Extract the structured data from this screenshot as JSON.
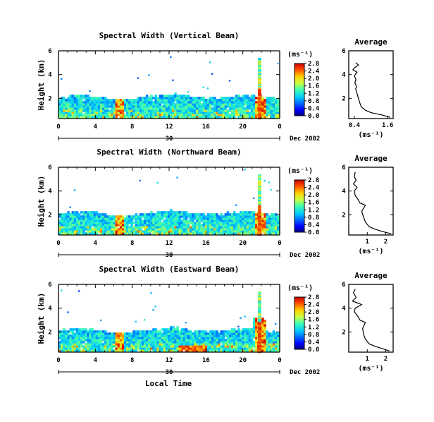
{
  "chart_data": [
    {
      "type": "heatmap",
      "title": "Spectral Width (Vertical Beam)",
      "ylabel": "Height (km)",
      "x_ticks": [
        "0",
        "4",
        "8",
        "12",
        "16",
        "20",
        "0"
      ],
      "y_ticks": [
        "2",
        "4",
        "6"
      ],
      "date_ticks": [
        "30"
      ],
      "date_label": "Dec 2002",
      "colorbar_unit": "(ms⁻¹)",
      "colorbar_ticks": [
        "0.0",
        "0.4",
        "0.8",
        "1.2",
        "1.6",
        "2.0",
        "2.4",
        "2.8"
      ],
      "xlim": [
        0,
        24
      ],
      "ylim": [
        0.3,
        6
      ],
      "avg": {
        "title": "Average",
        "xlabel": "(ms⁻¹)",
        "x_ticks": [
          "0.4",
          "1.6"
        ],
        "y_ticks": [
          "2",
          "4",
          "6"
        ],
        "xlim": [
          0.2,
          1.8
        ],
        "ylim": [
          0.3,
          6
        ],
        "profile": [
          [
            1.7,
            0.4
          ],
          [
            1.4,
            0.6
          ],
          [
            1.0,
            0.8
          ],
          [
            0.8,
            1.0
          ],
          [
            0.65,
            1.3
          ],
          [
            0.6,
            1.6
          ],
          [
            0.55,
            2.0
          ],
          [
            0.5,
            2.4
          ],
          [
            0.45,
            2.8
          ],
          [
            0.48,
            3.0
          ],
          [
            0.42,
            3.3
          ],
          [
            0.46,
            3.6
          ],
          [
            0.4,
            3.9
          ],
          [
            0.5,
            4.2
          ],
          [
            0.35,
            4.4
          ],
          [
            0.42,
            4.6
          ],
          [
            0.55,
            4.8
          ],
          [
            0.45,
            5.0
          ]
        ]
      }
    },
    {
      "type": "heatmap",
      "title": "Spectral Width (Northward Beam)",
      "ylabel": "Height (km)",
      "x_ticks": [
        "0",
        "4",
        "8",
        "12",
        "16",
        "20",
        "0"
      ],
      "y_ticks": [
        "2",
        "4",
        "6"
      ],
      "date_ticks": [
        "30"
      ],
      "date_label": "Dec 2002",
      "colorbar_unit": "(ms⁻¹)",
      "colorbar_ticks": [
        "0.0",
        "0.4",
        "0.8",
        "1.2",
        "1.6",
        "2.0",
        "2.4",
        "2.8"
      ],
      "xlim": [
        0,
        24
      ],
      "ylim": [
        0.3,
        6
      ],
      "avg": {
        "title": "Average",
        "xlabel": "(ms⁻¹)",
        "x_ticks": [
          "1",
          "2"
        ],
        "y_ticks": [
          "2",
          "4",
          "6"
        ],
        "xlim": [
          0,
          2.4
        ],
        "ylim": [
          0.3,
          6
        ],
        "profile": [
          [
            2.3,
            0.4
          ],
          [
            1.8,
            0.6
          ],
          [
            1.4,
            0.8
          ],
          [
            1.1,
            1.0
          ],
          [
            0.9,
            1.4
          ],
          [
            0.8,
            1.8
          ],
          [
            0.7,
            2.3
          ],
          [
            0.9,
            2.8
          ],
          [
            0.6,
            3.0
          ],
          [
            0.5,
            3.3
          ],
          [
            0.35,
            3.6
          ],
          [
            0.3,
            4.0
          ],
          [
            0.45,
            4.3
          ],
          [
            0.25,
            4.6
          ],
          [
            0.4,
            4.9
          ],
          [
            0.3,
            5.2
          ],
          [
            0.35,
            5.6
          ]
        ]
      }
    },
    {
      "type": "heatmap",
      "title": "Spectral Width (Eastward Beam)",
      "ylabel": "Height (km)",
      "x_ticks": [
        "0",
        "4",
        "8",
        "12",
        "16",
        "20",
        "0"
      ],
      "y_ticks": [
        "2",
        "4",
        "6"
      ],
      "date_ticks": [
        "30"
      ],
      "date_label": "Dec 2002",
      "colorbar_unit": "(ms⁻¹)",
      "colorbar_ticks": [
        "0.0",
        "0.4",
        "0.8",
        "1.2",
        "1.6",
        "2.0",
        "2.4",
        "2.8"
      ],
      "xlim": [
        0,
        24
      ],
      "ylim": [
        0.3,
        6
      ],
      "xlabel": "Local Time",
      "avg": {
        "title": "Average",
        "xlabel": "(ms⁻¹)",
        "x_ticks": [
          "1",
          "2"
        ],
        "y_ticks": [
          "2",
          "4",
          "6"
        ],
        "xlim": [
          0,
          2.4
        ],
        "ylim": [
          0.3,
          6
        ],
        "profile": [
          [
            2.2,
            0.4
          ],
          [
            1.8,
            0.6
          ],
          [
            1.4,
            0.8
          ],
          [
            1.1,
            1.0
          ],
          [
            0.9,
            1.4
          ],
          [
            0.8,
            1.8
          ],
          [
            0.75,
            2.3
          ],
          [
            0.9,
            2.8
          ],
          [
            0.6,
            3.0
          ],
          [
            0.5,
            3.3
          ],
          [
            0.3,
            3.7
          ],
          [
            0.35,
            4.0
          ],
          [
            0.7,
            4.3
          ],
          [
            0.2,
            4.6
          ],
          [
            0.4,
            4.9
          ],
          [
            0.25,
            5.3
          ],
          [
            0.35,
            5.6
          ]
        ]
      }
    }
  ]
}
